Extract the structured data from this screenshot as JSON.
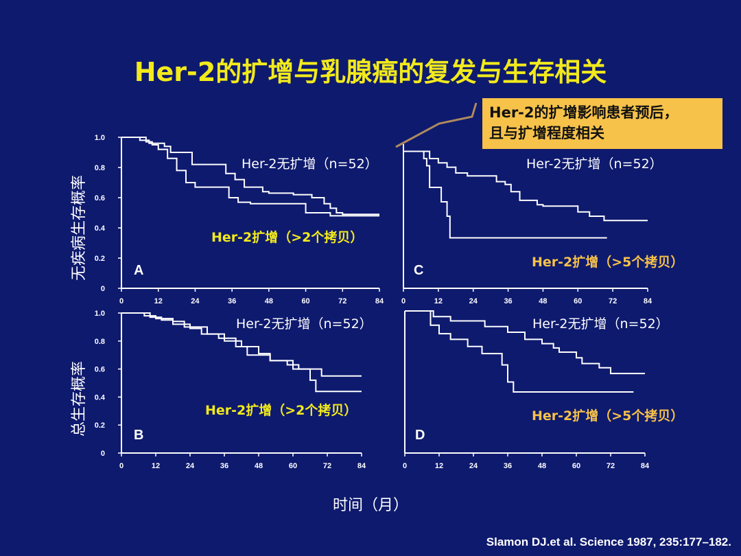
{
  "title": "Her-2的扩增与乳腺癌的复发与生存相关",
  "callout": {
    "line1": "Her-2的扩增影响患者预后，",
    "line2": "且与扩增程度相关"
  },
  "y_label_top": "无疾病生存概率",
  "y_label_bottom": "总生存概率",
  "x_label": "时间（月）",
  "citation": "Slamon DJ.et al. Science 1987, 235:177–182.",
  "colors": {
    "background": "#0e1a6e",
    "title": "#f2ea1c",
    "callout_bg": "#f7c24a",
    "amplified_label_ab": "#f2ea1c",
    "amplified_label_cd": "#f7c24a",
    "line": "#ffffff"
  },
  "chart_data": [
    {
      "type": "line",
      "panel": "A",
      "xlim": [
        0,
        84
      ],
      "ylim": [
        0,
        1.0
      ],
      "x_ticks": [
        "0",
        "12",
        "24",
        "36",
        "48",
        "60",
        "72",
        "84"
      ],
      "y_ticks": [
        "0",
        "0.2",
        "0.4",
        "0.6",
        "0.8",
        "1.0"
      ],
      "series": [
        {
          "name": "Her-2无扩增（n=52）",
          "x": [
            0,
            6,
            9,
            14,
            16,
            23,
            34,
            37,
            40,
            46,
            48,
            56,
            62,
            66,
            68,
            70,
            72,
            84
          ],
          "y": [
            1.0,
            0.98,
            0.96,
            0.94,
            0.9,
            0.82,
            0.76,
            0.72,
            0.67,
            0.64,
            0.63,
            0.62,
            0.6,
            0.56,
            0.53,
            0.5,
            0.49,
            0.49
          ]
        },
        {
          "name": "Her-2扩增（>2个拷贝）",
          "x": [
            0,
            8,
            10,
            12,
            15,
            18,
            21,
            24,
            35,
            38,
            42,
            48,
            58,
            60,
            68,
            84
          ],
          "y": [
            1.0,
            0.97,
            0.95,
            0.92,
            0.86,
            0.78,
            0.7,
            0.67,
            0.6,
            0.57,
            0.56,
            0.56,
            0.56,
            0.5,
            0.48,
            0.48
          ]
        }
      ]
    },
    {
      "type": "line",
      "panel": "C",
      "xlim": [
        0,
        84
      ],
      "ylim": [
        0,
        1.0
      ],
      "x_ticks": [
        "0",
        "12",
        "24",
        "36",
        "48",
        "60",
        "72",
        "84"
      ],
      "y_ticks": [
        "0",
        "0.2",
        "0.4",
        "0.6",
        "0.8",
        "1.0"
      ],
      "series": [
        {
          "name": "Her-2无扩增（n=52）",
          "x": [
            0,
            6,
            9,
            12,
            15,
            18,
            22,
            32,
            35,
            37,
            40,
            46,
            48,
            58,
            60,
            64,
            69,
            72,
            84
          ],
          "y": [
            0.95,
            0.95,
            0.9,
            0.87,
            0.84,
            0.8,
            0.78,
            0.74,
            0.72,
            0.67,
            0.61,
            0.58,
            0.57,
            0.57,
            0.53,
            0.5,
            0.47,
            0.47,
            0.47
          ]
        },
        {
          "name": "Her-2扩增（>5个拷贝）",
          "x": [
            0,
            7,
            8,
            9,
            13,
            15,
            16,
            70
          ],
          "y": [
            0.95,
            0.9,
            0.85,
            0.7,
            0.6,
            0.5,
            0.35,
            0.35
          ]
        }
      ]
    },
    {
      "type": "line",
      "panel": "B",
      "xlim": [
        0,
        84
      ],
      "ylim": [
        0,
        1.0
      ],
      "x_ticks": [
        "0",
        "12",
        "24",
        "36",
        "48",
        "60",
        "72",
        "84"
      ],
      "y_ticks": [
        "0",
        "0.2",
        "0.4",
        "0.6",
        "0.8",
        "1.0"
      ],
      "series": [
        {
          "name": "Her-2无扩增（n=52）",
          "x": [
            0,
            8,
            12,
            18,
            22,
            30,
            36,
            42,
            48,
            52,
            60,
            70,
            84
          ],
          "y": [
            1.0,
            0.98,
            0.96,
            0.94,
            0.9,
            0.85,
            0.8,
            0.76,
            0.71,
            0.66,
            0.6,
            0.55,
            0.55
          ]
        },
        {
          "name": "Her-2扩增（>2个拷贝）",
          "x": [
            0,
            10,
            14,
            18,
            24,
            28,
            34,
            40,
            44,
            52,
            58,
            62,
            66,
            68,
            72,
            84
          ],
          "y": [
            1.0,
            0.97,
            0.95,
            0.92,
            0.89,
            0.85,
            0.82,
            0.76,
            0.7,
            0.66,
            0.63,
            0.6,
            0.52,
            0.44,
            0.44,
            0.44
          ]
        }
      ]
    },
    {
      "type": "line",
      "panel": "D",
      "xlim": [
        0,
        84
      ],
      "ylim": [
        0,
        1.0
      ],
      "x_ticks": [
        "0",
        "12",
        "24",
        "36",
        "48",
        "60",
        "72",
        "84"
      ],
      "y_ticks": [
        "0",
        "0.2",
        "0.4",
        "0.6",
        "0.8",
        "1.0"
      ],
      "series": [
        {
          "name": "Her-2无扩增（n=52）",
          "x": [
            0,
            10,
            16,
            28,
            36,
            42,
            48,
            52,
            54,
            60,
            62,
            68,
            72,
            84
          ],
          "y": [
            1.0,
            0.96,
            0.93,
            0.89,
            0.85,
            0.8,
            0.77,
            0.74,
            0.71,
            0.67,
            0.63,
            0.6,
            0.56,
            0.56
          ]
        },
        {
          "name": "Her-2扩增（>5个拷贝）",
          "x": [
            0,
            9,
            12,
            16,
            22,
            27,
            34,
            36,
            38,
            80
          ],
          "y": [
            1.0,
            0.9,
            0.84,
            0.8,
            0.75,
            0.7,
            0.62,
            0.5,
            0.43,
            0.43
          ]
        }
      ]
    }
  ]
}
